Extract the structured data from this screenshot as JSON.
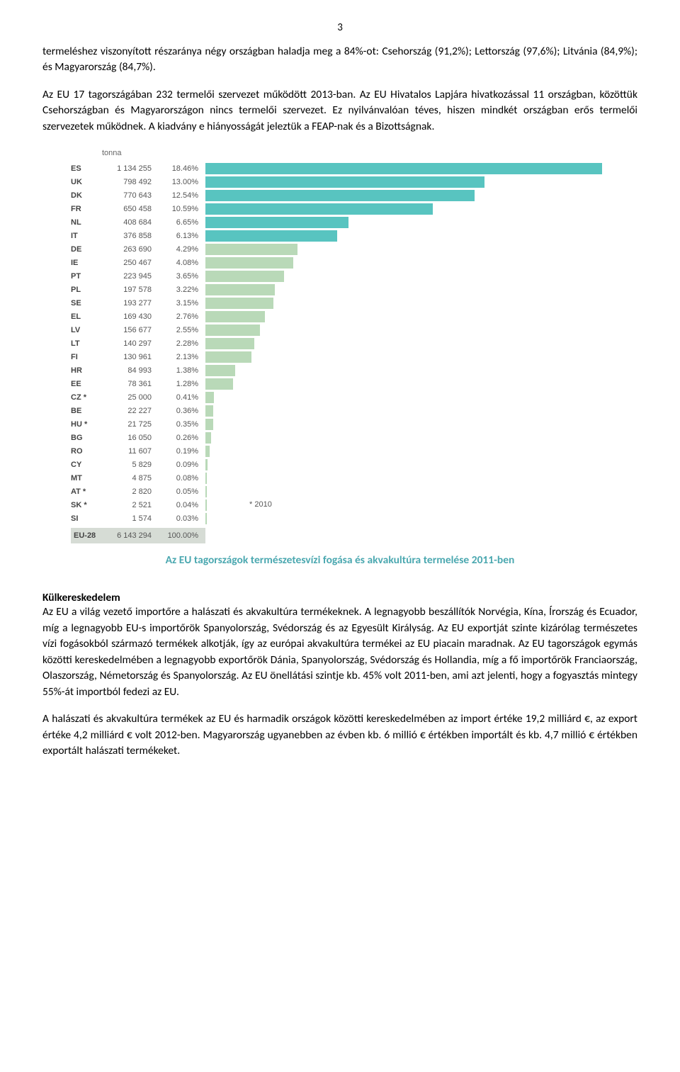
{
  "page_number": "3",
  "paragraphs": {
    "p1": "termeléshez viszonyított részaránya négy országban haladja meg a 84%-ot: Csehország (91,2%); Lettország (97,6%); Litvánia (84,9%); és Magyarország (84,7%).",
    "p2": "Az EU 17 tagországában 232 termelői szervezet működött 2013-ban. Az EU Hivatalos Lapjára hivatkozással 11 országban, közöttük Csehországban és Magyarországon nincs termelői szervezet. Ez nyilvánvalóan téves, hiszen mindkét országban erős termelői szervezetek működnek. A kiadvány e hiányosságát jeleztük a FEAP-nak és a Bizottságnak.",
    "p3": "Az EU a világ vezető importőre a halászati és akvakultúra termékeknek. A legnagyobb beszállítók Norvégia, Kína, Írország és Ecuador, míg a legnagyobb EU-s importőrök Spanyolország, Svédország és az Egyesült Királyság. Az EU exportját szinte kizárólag természetes vízi fogásokból származó termékek alkotják, így az európai akvakultúra termékei az EU piacain maradnak. Az EU tagországok egymás közötti kereskedelmében a legnagyobb exportőrök Dánia, Spanyolország, Svédország és Hollandia, míg a fő importőrök Franciaország, Olaszország, Németország és Spanyolország. Az EU önellátási szintje kb. 45% volt 2011-ben, ami azt jelenti, hogy a fogyasztás mintegy 55%-át importból fedezi az EU.",
    "p4": "A halászati és akvakultúra termékek az EU és harmadik országok közötti kereskedelmében az import értéke 19,2 milliárd €, az export értéke 4,2 milliárd € volt 2012-ben. Magyarország ugyanebben az évben kb. 6 millió € értékben importált és kb. 4,7 millió € értékben exportált halászati termékeket."
  },
  "chart": {
    "unit_label": "tonna",
    "asterisk_note": "* 2010",
    "caption": "Az EU tagországok természetesvízi fogása és akvakultúra termelése 2011-ben",
    "caption_color": "#4ba8b0",
    "bar_colors": {
      "primary": "#58c4c0",
      "secondary": "#b9d9b8",
      "primary_threshold": 6
    },
    "max_pct": 18.46,
    "rows": [
      {
        "code": "ES",
        "value": "1 134 255",
        "pct": "18.46%",
        "pct_num": 18.46
      },
      {
        "code": "UK",
        "value": "798 492",
        "pct": "13.00%",
        "pct_num": 13.0
      },
      {
        "code": "DK",
        "value": "770 643",
        "pct": "12.54%",
        "pct_num": 12.54
      },
      {
        "code": "FR",
        "value": "650 458",
        "pct": "10.59%",
        "pct_num": 10.59
      },
      {
        "code": "NL",
        "value": "408 684",
        "pct": "6.65%",
        "pct_num": 6.65
      },
      {
        "code": "IT",
        "value": "376 858",
        "pct": "6.13%",
        "pct_num": 6.13
      },
      {
        "code": "DE",
        "value": "263 690",
        "pct": "4.29%",
        "pct_num": 4.29
      },
      {
        "code": "IE",
        "value": "250 467",
        "pct": "4.08%",
        "pct_num": 4.08
      },
      {
        "code": "PT",
        "value": "223 945",
        "pct": "3.65%",
        "pct_num": 3.65
      },
      {
        "code": "PL",
        "value": "197 578",
        "pct": "3.22%",
        "pct_num": 3.22
      },
      {
        "code": "SE",
        "value": "193 277",
        "pct": "3.15%",
        "pct_num": 3.15
      },
      {
        "code": "EL",
        "value": "169 430",
        "pct": "2.76%",
        "pct_num": 2.76
      },
      {
        "code": "LV",
        "value": "156 677",
        "pct": "2.55%",
        "pct_num": 2.55
      },
      {
        "code": "LT",
        "value": "140 297",
        "pct": "2.28%",
        "pct_num": 2.28
      },
      {
        "code": "FI",
        "value": "130 961",
        "pct": "2.13%",
        "pct_num": 2.13
      },
      {
        "code": "HR",
        "value": "84 993",
        "pct": "1.38%",
        "pct_num": 1.38
      },
      {
        "code": "EE",
        "value": "78 361",
        "pct": "1.28%",
        "pct_num": 1.28
      },
      {
        "code": "CZ *",
        "value": "25 000",
        "pct": "0.41%",
        "pct_num": 0.41
      },
      {
        "code": "BE",
        "value": "22 227",
        "pct": "0.36%",
        "pct_num": 0.36
      },
      {
        "code": "HU *",
        "value": "21 725",
        "pct": "0.35%",
        "pct_num": 0.35
      },
      {
        "code": "BG",
        "value": "16 050",
        "pct": "0.26%",
        "pct_num": 0.26
      },
      {
        "code": "RO",
        "value": "11 607",
        "pct": "0.19%",
        "pct_num": 0.19
      },
      {
        "code": "CY",
        "value": "5 829",
        "pct": "0.09%",
        "pct_num": 0.09
      },
      {
        "code": "MT",
        "value": "4 875",
        "pct": "0.08%",
        "pct_num": 0.08
      },
      {
        "code": "AT *",
        "value": "2 820",
        "pct": "0.05%",
        "pct_num": 0.05
      },
      {
        "code": "SK *",
        "value": "2 521",
        "pct": "0.04%",
        "pct_num": 0.04
      },
      {
        "code": "SI",
        "value": "1 574",
        "pct": "0.03%",
        "pct_num": 0.03
      }
    ],
    "total_row": {
      "code": "EU-28",
      "value": "6 143 294",
      "pct": "100.00%"
    }
  },
  "section_heading": "Külkereskedelem"
}
